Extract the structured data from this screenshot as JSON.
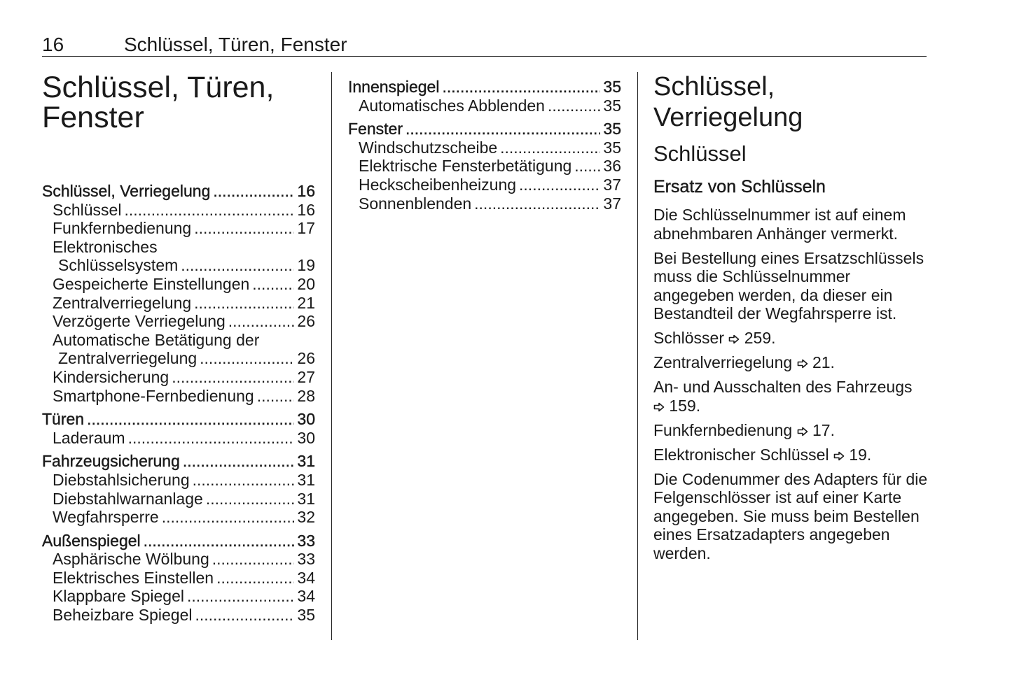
{
  "header": {
    "page_number": "16",
    "title": "Schlüssel, Türen, Fenster"
  },
  "chapter_title": [
    "Schlüssel, Türen,",
    "Fenster"
  ],
  "toc_col1": [
    {
      "type": "top",
      "label": "Schlüssel, Verriegelung",
      "page": "16"
    },
    {
      "type": "sub",
      "label": "Schlüssel",
      "page": "16"
    },
    {
      "type": "sub",
      "label": "Funkfernbedienung",
      "page": "17"
    },
    {
      "type": "sub",
      "label": "Elektronisches",
      "page": ""
    },
    {
      "type": "cont",
      "label": "Schlüsselsystem",
      "page": "19"
    },
    {
      "type": "sub",
      "label": "Gespeicherte Einstellungen",
      "page": "20"
    },
    {
      "type": "sub",
      "label": "Zentralverriegelung",
      "page": "21"
    },
    {
      "type": "sub",
      "label": "Verzögerte Verriegelung",
      "page": "26"
    },
    {
      "type": "sub",
      "label": "Automatische Betätigung der",
      "page": ""
    },
    {
      "type": "cont",
      "label": "Zentralverriegelung",
      "page": "26"
    },
    {
      "type": "sub",
      "label": "Kindersicherung",
      "page": "27"
    },
    {
      "type": "sub",
      "label": "Smartphone-Fernbedienung",
      "page": "28"
    },
    {
      "type": "top",
      "label": "Türen",
      "page": "30"
    },
    {
      "type": "sub",
      "label": "Laderaum",
      "page": "30"
    },
    {
      "type": "top",
      "label": "Fahrzeugsicherung",
      "page": "31"
    },
    {
      "type": "sub",
      "label": "Diebstahlsicherung",
      "page": "31"
    },
    {
      "type": "sub",
      "label": "Diebstahlwarnanlage",
      "page": "31"
    },
    {
      "type": "sub",
      "label": "Wegfahrsperre",
      "page": "32"
    },
    {
      "type": "top",
      "label": "Außenspiegel",
      "page": "33"
    },
    {
      "type": "sub",
      "label": "Asphärische Wölbung",
      "page": "33"
    },
    {
      "type": "sub",
      "label": "Elektrisches Einstellen",
      "page": "34"
    },
    {
      "type": "sub",
      "label": "Klappbare Spiegel",
      "page": "34"
    },
    {
      "type": "sub",
      "label": "Beheizbare Spiegel",
      "page": "35"
    }
  ],
  "toc_col2": [
    {
      "type": "top",
      "label": "Innenspiegel",
      "page": "35"
    },
    {
      "type": "sub",
      "label": "Automatisches Abblenden",
      "page": "35"
    },
    {
      "type": "top",
      "label": "Fenster",
      "page": "35"
    },
    {
      "type": "sub",
      "label": "Windschutzscheibe",
      "page": "35"
    },
    {
      "type": "sub",
      "label": "Elektrische Fensterbetätigung",
      "page": "36"
    },
    {
      "type": "sub",
      "label": "Heckscheibenheizung",
      "page": "37"
    },
    {
      "type": "sub",
      "label": "Sonnenblenden",
      "page": "37"
    }
  ],
  "section": {
    "h1": "Schlüssel, Verriegelung",
    "h2": "Schlüssel",
    "h3": "Ersatz von Schlüsseln",
    "paragraphs": [
      {
        "text": "Die Schlüsselnummer ist auf einem abnehmbaren Anhänger vermerkt."
      },
      {
        "text": "Bei Bestellung eines Ersatzschlüs­sels muss die Schlüsselnummer angegeben werden, da dieser ein Bestandteil der Wegfahrsperre ist."
      },
      {
        "text": "Schlösser",
        "ref": "259."
      },
      {
        "text": "Zentralverriegelung",
        "ref": "21."
      },
      {
        "text": "An- und Ausschalten des Fahrzeugs",
        "ref": "159.",
        "break": true
      },
      {
        "text": "Funkfernbedienung",
        "ref": "17."
      },
      {
        "text": "Elektronischer Schlüssel",
        "ref": "19."
      },
      {
        "text": "Die Codenummer des Adapters für die Felgenschlösser ist auf einer Karte angegeben. Sie muss beim Bestellen eines Ersatzadapters ange­geben werden."
      }
    ]
  },
  "icons": {
    "reference": "arrow-right-outline-icon"
  }
}
